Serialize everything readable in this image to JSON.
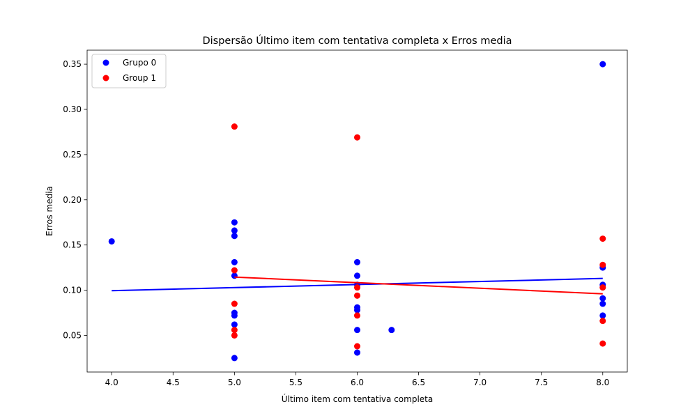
{
  "chart_data": {
    "type": "scatter",
    "title": "Dispersão Último item com tentativa completa x Erros media",
    "xlabel": "Último item com tentativa completa",
    "ylabel": "Erros media",
    "xlim": [
      3.8,
      8.2
    ],
    "ylim": [
      0.0095,
      0.3655
    ],
    "xticks": [
      "4.0",
      "4.5",
      "5.0",
      "5.5",
      "6.0",
      "6.5",
      "7.0",
      "7.5",
      "8.0"
    ],
    "yticks": [
      "0.05",
      "0.10",
      "0.15",
      "0.20",
      "0.25",
      "0.30",
      "0.35"
    ],
    "grid": false,
    "legend_position": "top-left",
    "series": [
      {
        "name": "Grupo 0",
        "color": "#0000ff",
        "points": [
          {
            "x": 4.0,
            "y": 0.154
          },
          {
            "x": 5.0,
            "y": 0.175
          },
          {
            "x": 5.0,
            "y": 0.166
          },
          {
            "x": 5.0,
            "y": 0.16
          },
          {
            "x": 5.0,
            "y": 0.131
          },
          {
            "x": 5.0,
            "y": 0.116
          },
          {
            "x": 5.0,
            "y": 0.075
          },
          {
            "x": 5.0,
            "y": 0.072
          },
          {
            "x": 5.0,
            "y": 0.062
          },
          {
            "x": 5.0,
            "y": 0.025
          },
          {
            "x": 6.0,
            "y": 0.131
          },
          {
            "x": 6.0,
            "y": 0.116
          },
          {
            "x": 6.0,
            "y": 0.106
          },
          {
            "x": 6.0,
            "y": 0.081
          },
          {
            "x": 6.0,
            "y": 0.078
          },
          {
            "x": 6.0,
            "y": 0.056
          },
          {
            "x": 6.0,
            "y": 0.031
          },
          {
            "x": 6.28,
            "y": 0.056
          },
          {
            "x": 8.0,
            "y": 0.35
          },
          {
            "x": 8.0,
            "y": 0.125
          },
          {
            "x": 8.0,
            "y": 0.106
          },
          {
            "x": 8.0,
            "y": 0.091
          },
          {
            "x": 8.0,
            "y": 0.085
          },
          {
            "x": 8.0,
            "y": 0.072
          }
        ],
        "trend": {
          "x": [
            4.0,
            8.0
          ],
          "y": [
            0.0995,
            0.113
          ]
        }
      },
      {
        "name": "Group 1",
        "color": "#ff0000",
        "points": [
          {
            "x": 5.0,
            "y": 0.281
          },
          {
            "x": 5.0,
            "y": 0.122
          },
          {
            "x": 5.0,
            "y": 0.085
          },
          {
            "x": 5.0,
            "y": 0.056
          },
          {
            "x": 5.0,
            "y": 0.05
          },
          {
            "x": 6.0,
            "y": 0.269
          },
          {
            "x": 6.0,
            "y": 0.103
          },
          {
            "x": 6.0,
            "y": 0.094
          },
          {
            "x": 6.0,
            "y": 0.072
          },
          {
            "x": 6.0,
            "y": 0.038
          },
          {
            "x": 8.0,
            "y": 0.157
          },
          {
            "x": 8.0,
            "y": 0.128
          },
          {
            "x": 8.0,
            "y": 0.103
          },
          {
            "x": 8.0,
            "y": 0.066
          },
          {
            "x": 8.0,
            "y": 0.041
          }
        ],
        "trend": {
          "x": [
            5.0,
            8.0
          ],
          "y": [
            0.1145,
            0.096
          ]
        }
      }
    ]
  }
}
